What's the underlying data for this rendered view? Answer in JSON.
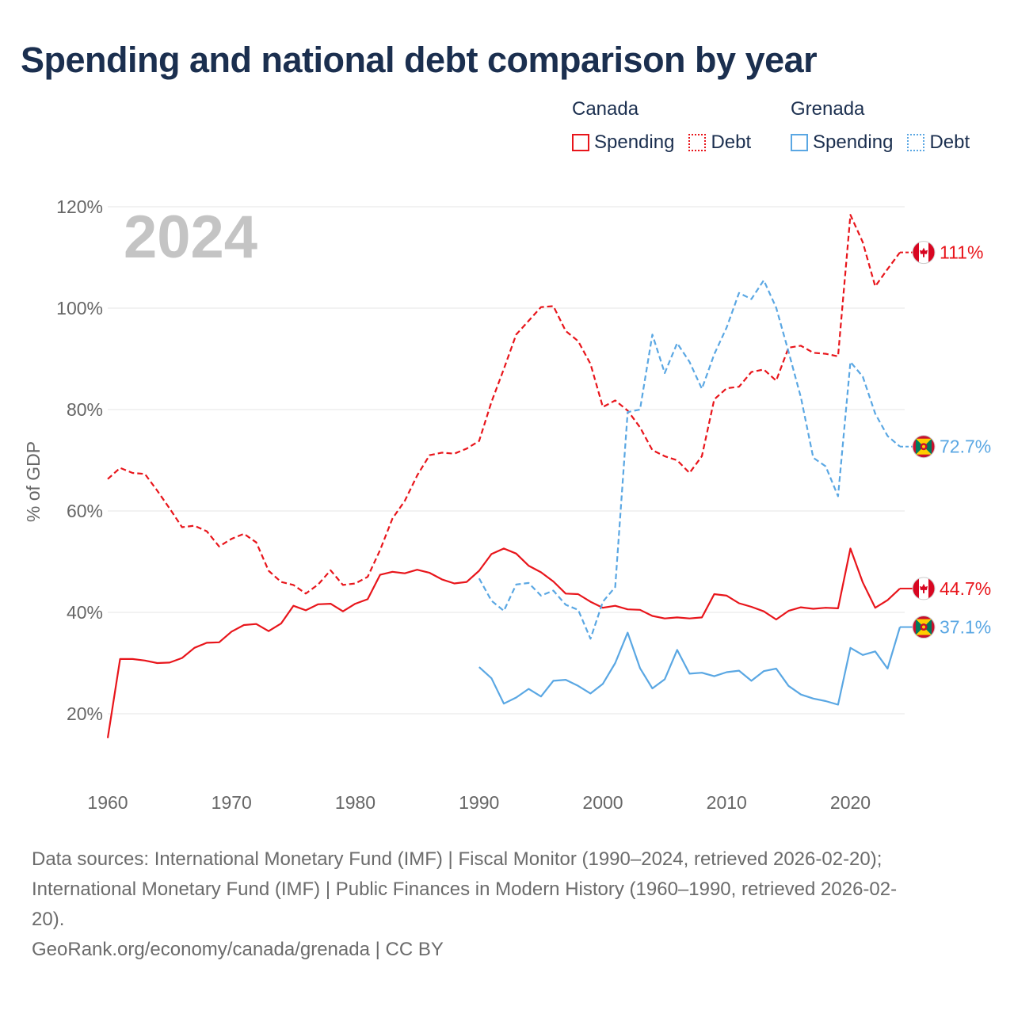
{
  "title": "Spending and national debt comparison by year",
  "legend": {
    "groups": [
      {
        "country": "Canada",
        "items": [
          {
            "label": "Spending",
            "style": "solid",
            "color": "#e8151b"
          },
          {
            "label": "Debt",
            "style": "dotted",
            "color": "#e8151b"
          }
        ]
      },
      {
        "country": "Grenada",
        "items": [
          {
            "label": "Spending",
            "style": "solid",
            "color": "#5aa7e3"
          },
          {
            "label": "Debt",
            "style": "dotted",
            "color": "#5aa7e3"
          }
        ]
      }
    ]
  },
  "chart_data": {
    "type": "line",
    "year_watermark": "2024",
    "ylabel": "% of GDP",
    "xlim": [
      1960,
      2024
    ],
    "ylim": [
      10,
      120
    ],
    "y_ticks": [
      20,
      40,
      60,
      80,
      100,
      120
    ],
    "y_tick_labels": [
      "20%",
      "40%",
      "60%",
      "80%",
      "100%",
      "120%"
    ],
    "x_ticks": [
      1960,
      1970,
      1980,
      1990,
      2000,
      2010,
      2020
    ],
    "x_tick_labels": [
      "1960",
      "1970",
      "1980",
      "1990",
      "2000",
      "2010",
      "2020"
    ],
    "grid": true,
    "series": [
      {
        "name": "Canada Debt",
        "country": "Canada",
        "measure": "Debt",
        "color": "#e8151b",
        "dash": "dashed",
        "flag": "canada-flag-icon",
        "end_label": "111%",
        "start_year": 1960,
        "values": [
          66.3,
          68.5,
          67.5,
          67.3,
          64,
          60.5,
          56.8,
          57.1,
          56,
          53,
          54.5,
          55.5,
          53.8,
          48.2,
          46,
          45.4,
          43.7,
          45.5,
          48.3,
          45.4,
          45.7,
          47,
          52.3,
          58.5,
          62,
          67,
          71,
          71.5,
          71.3,
          72.3,
          73.8,
          81.5,
          88,
          94.8,
          97.5,
          100.2,
          100.4,
          95.5,
          93.5,
          89,
          80.5,
          81.8,
          79.8,
          76.5,
          72,
          70.8,
          70,
          67.5,
          70.8,
          82,
          84.2,
          84.5,
          87.4,
          87.9,
          85.7,
          92.2,
          92.6,
          91.2,
          91,
          90.5,
          118.4,
          113,
          104.3,
          107.7,
          111
        ]
      },
      {
        "name": "Canada Spending",
        "country": "Canada",
        "measure": "Spending",
        "color": "#e8151b",
        "dash": "solid",
        "flag": "canada-flag-icon",
        "end_label": "44.7%",
        "start_year": 1960,
        "values": [
          15.2,
          30.8,
          30.8,
          30.5,
          30,
          30.1,
          31,
          33,
          34,
          34.1,
          36.2,
          37.5,
          37.7,
          36.3,
          37.8,
          41.3,
          40.4,
          41.6,
          41.7,
          40.2,
          41.7,
          42.6,
          47.4,
          48,
          47.7,
          48.4,
          47.8,
          46.5,
          45.7,
          46,
          48.2,
          51.5,
          52.6,
          51.6,
          49.2,
          47.9,
          46.1,
          43.7,
          43.6,
          42.1,
          40.9,
          41.3,
          40.6,
          40.5,
          39.3,
          38.8,
          39,
          38.8,
          39,
          43.6,
          43.3,
          41.8,
          41.1,
          40.2,
          38.6,
          40.3,
          41,
          40.7,
          40.9,
          40.8,
          52.6,
          45.9,
          40.9,
          42.4,
          44.7
        ]
      },
      {
        "name": "Grenada Debt",
        "country": "Grenada",
        "measure": "Debt",
        "color": "#5aa7e3",
        "dash": "dashed",
        "flag": "grenada-flag-icon",
        "end_label": "72.7%",
        "start_year": 1990,
        "values": [
          46.7,
          42.3,
          40.3,
          45.5,
          45.8,
          43.3,
          44.3,
          41.5,
          40.5,
          34.8,
          42.1,
          45,
          79.5,
          80,
          94.8,
          87.2,
          93.1,
          89.4,
          84.1,
          90.9,
          96.2,
          103,
          101.8,
          105.5,
          100.1,
          91.4,
          82.4,
          70.5,
          68.8,
          62.9,
          89.4,
          86.5,
          79.2,
          74.8,
          72.7
        ]
      },
      {
        "name": "Grenada Spending",
        "country": "Grenada",
        "measure": "Spending",
        "color": "#5aa7e3",
        "dash": "solid",
        "flag": "grenada-flag-icon",
        "end_label": "37.1%",
        "start_year": 1990,
        "values": [
          29.2,
          27,
          22,
          23.2,
          24.9,
          23.4,
          26.5,
          26.7,
          25.5,
          24,
          25.9,
          30,
          36,
          29,
          25,
          26.8,
          32.6,
          27.9,
          28.1,
          27.4,
          28.2,
          28.5,
          26.5,
          28.4,
          28.9,
          25.5,
          23.8,
          23,
          22.5,
          21.8,
          33,
          31.6,
          32.3,
          28.9,
          37.1
        ]
      }
    ]
  },
  "footer": {
    "source_line1": "Data sources: International Monetary Fund (IMF) | Fiscal Monitor (1990–2024, retrieved 2026-02-20);",
    "source_line2": "International Monetary Fund (IMF) | Public Finances in Modern History (1960–1990, retrieved 2026-02-",
    "source_line3": "20).",
    "credit": "GeoRank.org/economy/canada/grenada | CC BY"
  }
}
